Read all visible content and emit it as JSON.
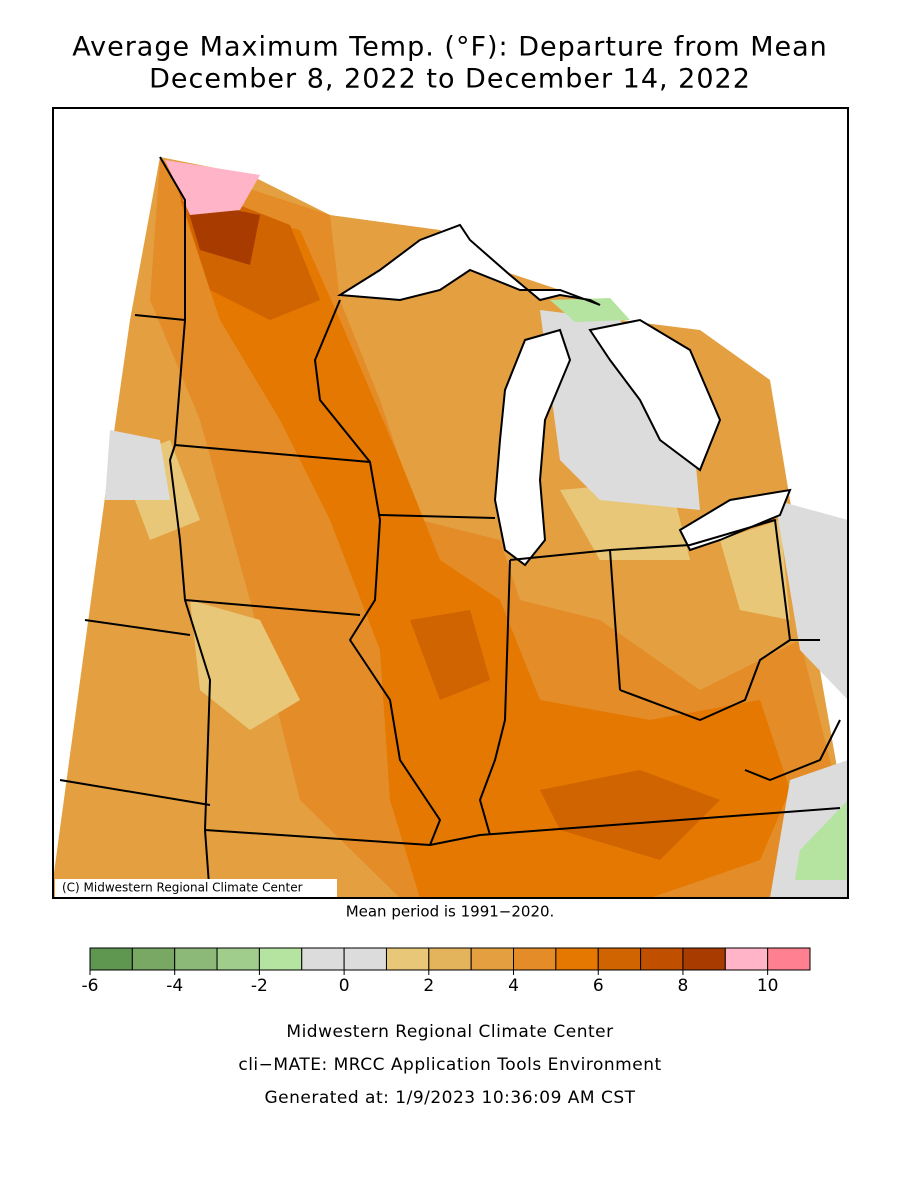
{
  "header": {
    "title_line1": "Average Maximum Temp. (°F): Departure from Mean",
    "title_line2": "December 8, 2022 to December 14, 2022"
  },
  "map": {
    "credit": "(C) Midwestern Regional Climate Center"
  },
  "note": "Mean period is 1991−2020.",
  "legend": {
    "bins": [
      -6,
      -5,
      -4,
      -3,
      -2,
      -1,
      0,
      1,
      2,
      3,
      4,
      5,
      6,
      7,
      8,
      9,
      10,
      11
    ],
    "colors": [
      "#5f9650",
      "#78a864",
      "#8cb878",
      "#a0cc8c",
      "#b4e4a0",
      "#dcdcdc",
      "#dcdcdc",
      "#e8c878",
      "#e4b45c",
      "#e4a040",
      "#e48c28",
      "#e47800",
      "#d06400",
      "#c05000",
      "#a83c00",
      "#ffb4c8",
      "#ff8090"
    ],
    "ticks": [
      -6,
      -4,
      -2,
      0,
      2,
      4,
      6,
      8,
      10
    ]
  },
  "footer": [
    "Midwestern Regional Climate Center",
    "cli−MATE: MRCC Application Tools Environment",
    "Generated at: 1/9/2023 10:36:09 AM CST"
  ]
}
